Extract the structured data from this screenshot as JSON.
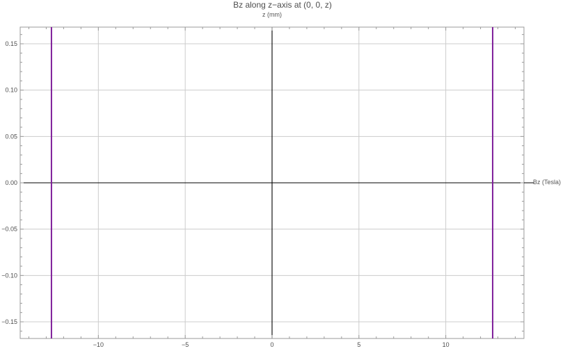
{
  "chart_data": {
    "type": "line",
    "title": "Bz along z−axis at (0, 0, z)",
    "xlabel": "z (mm)",
    "ylabel": "Bz (Tesla)",
    "xlim": [
      -14.5,
      14.5
    ],
    "ylim": [
      -0.168,
      0.168
    ],
    "x_ticks": [
      -10,
      -5,
      0,
      5,
      10
    ],
    "x_tick_labels": [
      "−10",
      "−5",
      "0",
      "5",
      "10"
    ],
    "y_ticks": [
      -0.15,
      -0.1,
      -0.05,
      0.0,
      0.05,
      0.1,
      0.15
    ],
    "y_tick_labels": [
      "−0.15",
      "−0.10",
      "−0.05",
      "0.00",
      "0.05",
      "0.10",
      "0.15"
    ],
    "grid": true,
    "series": [
      {
        "color": "#7f1f9a",
        "x": [
          -12.7,
          -12.7,
          12.7,
          12.7
        ],
        "y": [
          0.168,
          -0.168,
          0.168,
          -0.168
        ],
        "segments": [
          [
            0,
            1
          ],
          [
            2,
            3
          ]
        ]
      }
    ]
  }
}
